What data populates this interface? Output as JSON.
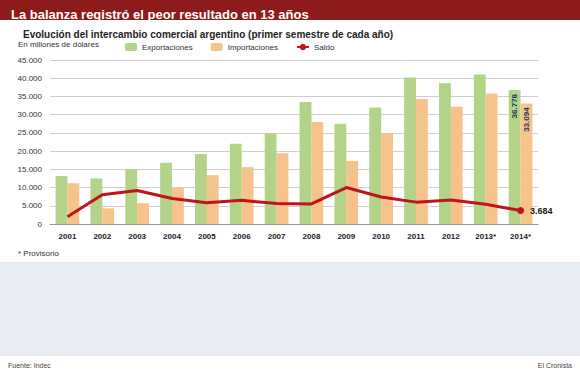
{
  "chart_data": {
    "type": "bar",
    "title": "La balanza registró el peor resultado en 13 años",
    "subtitle": "Evolución del intercambio comercial argentino (primer semestre de cada año)",
    "y_label": "En millones de dólares",
    "annotations": [
      "* Provisorio",
      "Fuente: Indec",
      "El Cronista"
    ],
    "categories": [
      "2001",
      "2002",
      "2003",
      "2004",
      "2005",
      "2006",
      "2007",
      "2008",
      "2009",
      "2010",
      "2011",
      "2012",
      "2013*",
      "2014*"
    ],
    "series": [
      {
        "name": "Exportaciones",
        "type": "bar",
        "color": "#b3d389",
        "values": [
          13200,
          12500,
          15000,
          16800,
          19200,
          22000,
          24800,
          33500,
          27500,
          32000,
          40200,
          38600,
          41000,
          36778
        ],
        "value_labels": [
          null,
          null,
          null,
          null,
          null,
          null,
          null,
          null,
          null,
          null,
          null,
          null,
          null,
          "36.778"
        ]
      },
      {
        "name": "Importaciones",
        "type": "bar",
        "color": "#f7c38d",
        "values": [
          11200,
          4300,
          5700,
          9900,
          13400,
          15600,
          19400,
          28000,
          17300,
          24800,
          34300,
          32200,
          35800,
          33094
        ],
        "value_labels": [
          null,
          null,
          null,
          null,
          null,
          null,
          null,
          null,
          null,
          null,
          null,
          null,
          null,
          "33.094"
        ]
      },
      {
        "name": "Saldo",
        "type": "line",
        "color": "#c0141c",
        "values": [
          2000,
          8000,
          9200,
          7000,
          5800,
          6500,
          5600,
          5500,
          10000,
          7400,
          6000,
          6600,
          5400,
          3684
        ],
        "value_labels": [
          null,
          null,
          null,
          null,
          null,
          null,
          null,
          null,
          null,
          null,
          null,
          null,
          null,
          "3.684"
        ]
      }
    ],
    "ylim": [
      0,
      45000
    ],
    "yticks": [
      0,
      {
        "value": 5000,
        "label": "5.000"
      },
      {
        "value": 10000,
        "label": "10.000"
      },
      {
        "value": 15000,
        "label": "15.000"
      },
      {
        "value": 20000,
        "label": "20.000"
      },
      {
        "value": 25000,
        "label": "25.000"
      },
      {
        "value": 30000,
        "label": "30.000"
      },
      {
        "value": 35000,
        "label": "35.000"
      },
      {
        "value": 40000,
        "label": "40.000"
      },
      {
        "value": 45000,
        "label": "45.000"
      }
    ],
    "grid": true,
    "legend": "top",
    "data_labels": true
  }
}
